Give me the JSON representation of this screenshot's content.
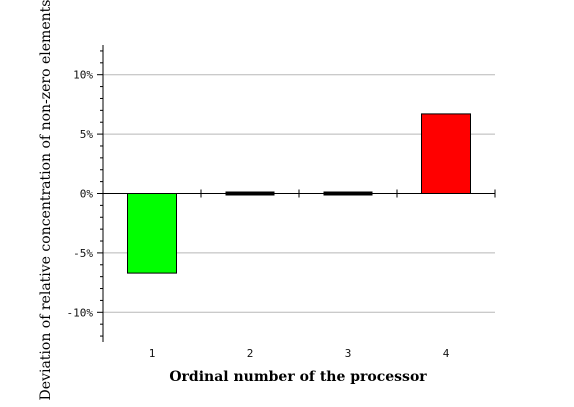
{
  "chart_data": {
    "type": "bar",
    "title": "",
    "xlabel": "Ordinal number of the processor",
    "ylabel": "Deviation of relative concentration of non-zero elements",
    "categories": [
      "1",
      "2",
      "3",
      "4"
    ],
    "values": [
      -6.7,
      0,
      0,
      6.7
    ],
    "bar_colors": [
      "#00ff00",
      "#000000",
      "#000000",
      "#ff0000"
    ],
    "ylim": [
      -12.5,
      12.5
    ],
    "yticks": [
      -10,
      -5,
      0,
      5,
      10
    ],
    "ytick_labels": [
      "-10%",
      "-5%",
      "0%",
      "5%",
      "10%"
    ],
    "grid": true
  }
}
